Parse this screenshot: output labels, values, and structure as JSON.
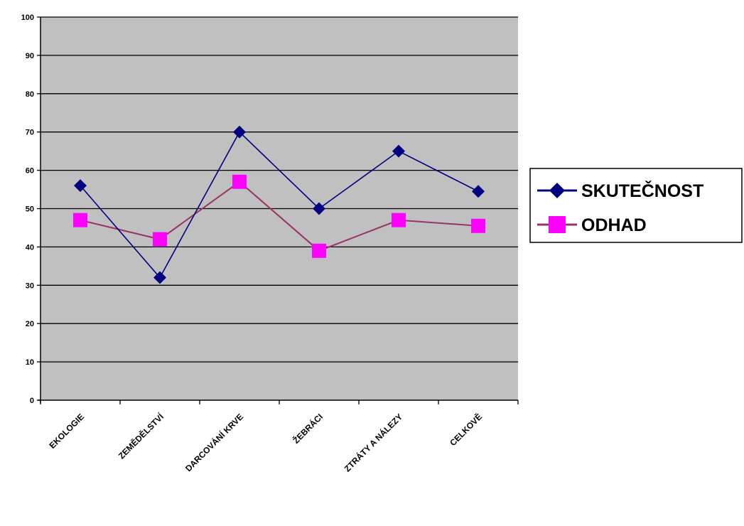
{
  "chart_data": {
    "type": "line",
    "categories": [
      "EKOLOGIE",
      "ZEMĚDĚLSTVÍ",
      "DARCOVÁNÍ KRVE",
      "ŽEBRÁCI",
      "ZTRÁTY A NÁLEZY",
      "CELKOVĚ"
    ],
    "series": [
      {
        "name": "SKUTEČNOST",
        "values": [
          56,
          32,
          70,
          50,
          65,
          54.5
        ],
        "color": "#000080",
        "marker": "diamond"
      },
      {
        "name": "ODHAD",
        "values": [
          47,
          42,
          57,
          39,
          47,
          45.5
        ],
        "color": "#993366",
        "marker_color": "#ff00ff",
        "marker": "square"
      }
    ],
    "ylim": [
      0,
      100
    ],
    "yticks": [
      "0",
      "10",
      "20",
      "30",
      "40",
      "50",
      "60",
      "70",
      "80",
      "90",
      "100"
    ],
    "grid": true,
    "plot_background": "#c0c0c0",
    "legend_position": "right",
    "title": "",
    "xlabel": "",
    "ylabel": ""
  }
}
